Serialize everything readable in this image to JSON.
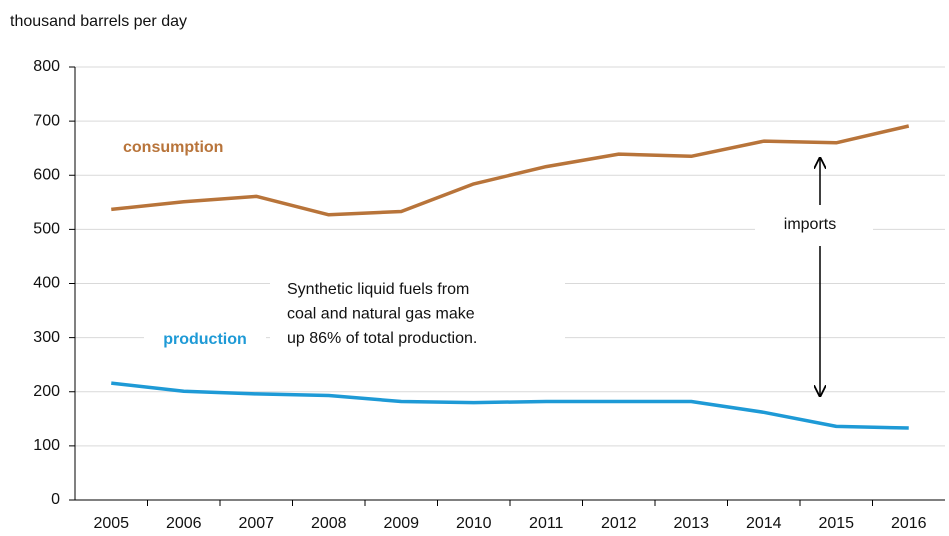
{
  "chart_data": {
    "type": "line",
    "y_axis_label": "thousand barrels per day",
    "categories": [
      "2005",
      "2006",
      "2007",
      "2008",
      "2009",
      "2010",
      "2011",
      "2012",
      "2013",
      "2014",
      "2015",
      "2016"
    ],
    "series": [
      {
        "name": "consumption",
        "color": "#b8743a",
        "values": [
          537,
          551,
          561,
          527,
          533,
          584,
          616,
          639,
          635,
          663,
          660,
          691
        ]
      },
      {
        "name": "production",
        "color": "#1e9ad6",
        "values": [
          216,
          201,
          196,
          193,
          182,
          180,
          182,
          182,
          182,
          162,
          136,
          133
        ]
      }
    ],
    "ylim": [
      0,
      800
    ],
    "yticks": [
      0,
      100,
      200,
      300,
      400,
      500,
      600,
      700,
      800
    ],
    "grid": true,
    "annotations": [
      "imports",
      "Synthetic liquid fuels from",
      "coal and natural gas make",
      "up 86% of total production."
    ]
  }
}
